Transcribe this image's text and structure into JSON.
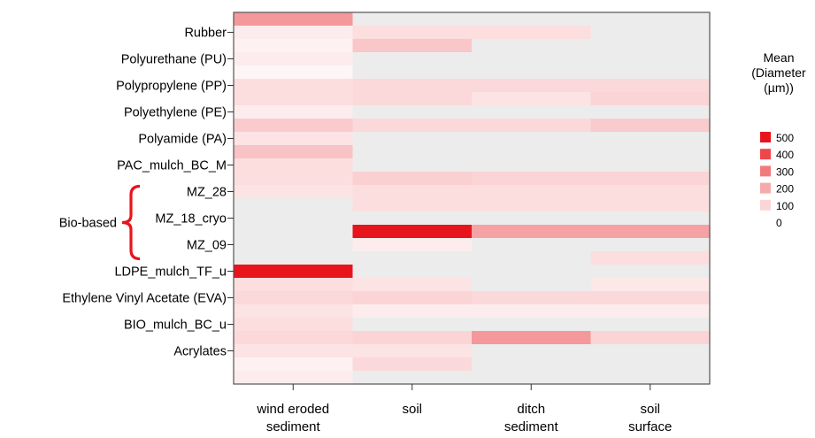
{
  "chart_data": {
    "type": "heatmap",
    "title": "",
    "xlabel": "",
    "ylabel": "",
    "columns": [
      [
        "wind eroded",
        "sediment"
      ],
      [
        "soil"
      ],
      [
        "ditch",
        "sediment"
      ],
      [
        "soil",
        "surface"
      ]
    ],
    "row_labels": [
      "Rubber",
      "Polyurethane (PU)",
      "Polypropylene (PP)",
      "Polyethylene (PE)",
      "Polyamide (PA)",
      "PAC_mulch_BC_M",
      "MZ_28",
      "MZ_18_cryo",
      "MZ_09",
      "LDPE_mulch_TF_u",
      "Ethylene Vinyl Acetate (EVA)",
      "BIO_mulch_BC_u",
      "Acrylates"
    ],
    "group_annotation": {
      "label": "Bio-based",
      "rows": [
        "MZ_28",
        "MZ_18_cryo",
        "MZ_09"
      ],
      "color": "#e8141b"
    },
    "sub_rows": 28,
    "row_tick_positions": [
      1.5,
      3.5,
      5.5,
      7.5,
      9.5,
      11.5,
      13.5,
      15.5,
      17.5,
      19.5,
      21.5,
      23.5,
      25.5
    ],
    "values": [
      [
        220,
        0,
        0,
        0
      ],
      [
        40,
        70,
        70,
        0
      ],
      [
        30,
        120,
        0,
        0
      ],
      [
        40,
        0,
        0,
        0
      ],
      [
        20,
        0,
        0,
        0
      ],
      [
        70,
        80,
        80,
        80
      ],
      [
        70,
        80,
        60,
        90
      ],
      [
        40,
        0,
        0,
        0
      ],
      [
        110,
        80,
        80,
        110
      ],
      [
        60,
        0,
        0,
        0
      ],
      [
        130,
        0,
        0,
        0
      ],
      [
        70,
        0,
        0,
        0
      ],
      [
        70,
        100,
        90,
        90
      ],
      [
        60,
        70,
        70,
        70
      ],
      [
        0,
        70,
        70,
        70
      ],
      [
        0,
        0,
        0,
        0
      ],
      [
        0,
        500,
        200,
        200
      ],
      [
        0,
        40,
        0,
        0
      ],
      [
        0,
        0,
        0,
        70
      ],
      [
        500,
        0,
        0,
        0
      ],
      [
        70,
        60,
        0,
        50
      ],
      [
        80,
        90,
        80,
        80
      ],
      [
        60,
        40,
        40,
        40
      ],
      [
        70,
        0,
        0,
        0
      ],
      [
        80,
        90,
        220,
        90
      ],
      [
        60,
        60,
        0,
        0
      ],
      [
        30,
        80,
        0,
        0
      ],
      [
        40,
        0,
        0,
        0
      ]
    ],
    "missing_color": "#ececec",
    "color_range": [
      0,
      500
    ],
    "legend": {
      "title": [
        "Mean",
        "(Diameter",
        "(µm))"
      ],
      "entries": [
        "500",
        "400",
        "300",
        "200",
        "100",
        "0"
      ],
      "colors": [
        "#e8141b",
        "#ed474c",
        "#f27a7d",
        "#f6aaab",
        "#fbd6d6",
        "#ffffff"
      ],
      "position": "right"
    }
  }
}
